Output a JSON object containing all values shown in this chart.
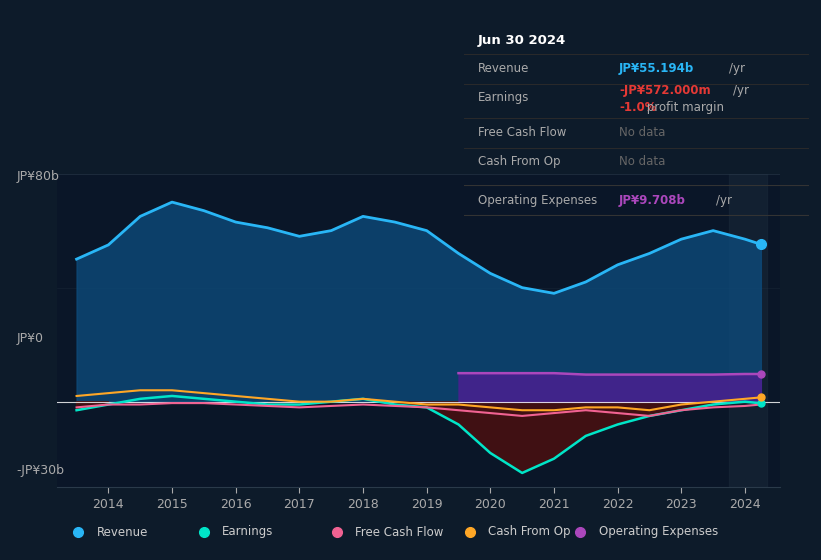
{
  "bg_color": "#0d1b2a",
  "chart_bg": "#0d1b2a",
  "panel_bg": "#0a1628",
  "title_box_bg": "#0a0a0a",
  "years": [
    2013.5,
    2014.0,
    2014.5,
    2015.0,
    2015.5,
    2016.0,
    2016.5,
    2017.0,
    2017.5,
    2018.0,
    2018.5,
    2019.0,
    2019.5,
    2020.0,
    2020.5,
    2021.0,
    2021.5,
    2022.0,
    2022.5,
    2023.0,
    2023.5,
    2024.0,
    2024.25
  ],
  "revenue": [
    50,
    55,
    65,
    70,
    67,
    63,
    61,
    58,
    60,
    65,
    63,
    60,
    52,
    45,
    40,
    38,
    42,
    48,
    52,
    57,
    60,
    57,
    55.194
  ],
  "earnings": [
    -3,
    -1,
    1,
    2,
    1,
    0,
    -1,
    -1,
    0,
    1,
    -1,
    -2,
    -8,
    -18,
    -25,
    -20,
    -12,
    -8,
    -5,
    -3,
    -1,
    0,
    -0.572
  ],
  "free_cash_flow": [
    -2,
    -1,
    -1,
    -0.5,
    -0.5,
    -1,
    -1.5,
    -2,
    -1.5,
    -1,
    -1.5,
    -2,
    -3,
    -4,
    -5,
    -4,
    -3,
    -4,
    -5,
    -3,
    -2,
    -1.5,
    -1
  ],
  "cash_from_op": [
    2,
    3,
    4,
    4,
    3,
    2,
    1,
    0,
    0,
    1,
    0,
    -1,
    -1,
    -2,
    -3,
    -3,
    -2,
    -2,
    -3,
    -1,
    0,
    1,
    1.5
  ],
  "op_expenses_x": [
    2019.5,
    2020.0,
    2020.5,
    2021.0,
    2021.5,
    2022.0,
    2022.5,
    2023.0,
    2023.5,
    2024.0,
    2024.25
  ],
  "op_expenses_y": [
    10,
    10,
    10,
    10,
    9.5,
    9.5,
    9.5,
    9.5,
    9.5,
    9.708,
    9.708
  ],
  "revenue_color": "#29b6f6",
  "earnings_color": "#00e5c8",
  "fcf_color": "#f06292",
  "cashop_color": "#ffa726",
  "opex_color": "#ab47bc",
  "revenue_fill": "#0d4a7a",
  "earnings_fill_neg": "#4a1010",
  "opex_fill": "#4a2090",
  "y_min": -30,
  "y_max": 80,
  "y_ticks": [
    80,
    0,
    -30
  ],
  "y_tick_labels": [
    "JP¥80b",
    "JP¥0",
    "-JP¥30b"
  ],
  "x_ticks": [
    2014,
    2015,
    2016,
    2017,
    2018,
    2019,
    2020,
    2021,
    2022,
    2023,
    2024
  ],
  "highlight_x_start": 2023.75,
  "info_title": "Jun 30 2024",
  "info_revenue_label": "Revenue",
  "info_revenue_val": "JP¥55.194b",
  "info_earnings_label": "Earnings",
  "info_earnings_val": "-JP¥572.000m",
  "info_margin": "-1.0%",
  "info_fcf_label": "Free Cash Flow",
  "info_cashop_label": "Cash From Op",
  "info_opex_label": "Operating Expenses",
  "info_opex_val": "JP¥9.708b",
  "legend_items": [
    {
      "label": "Revenue",
      "color": "#29b6f6"
    },
    {
      "label": "Earnings",
      "color": "#00e5c8"
    },
    {
      "label": "Free Cash Flow",
      "color": "#f06292"
    },
    {
      "label": "Cash From Op",
      "color": "#ffa726"
    },
    {
      "label": "Operating Expenses",
      "color": "#ab47bc"
    }
  ]
}
